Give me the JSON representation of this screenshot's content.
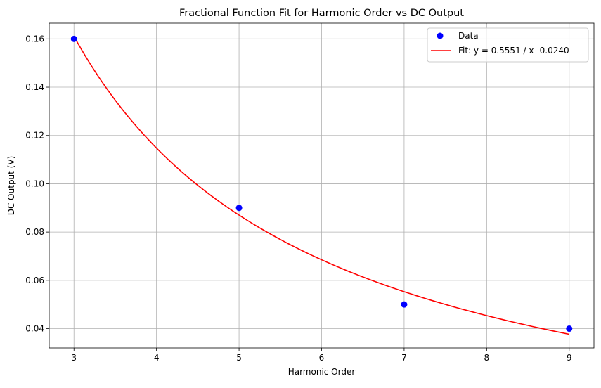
{
  "chart_data": {
    "type": "scatter",
    "title": "Fractional Function Fit for Harmonic Order vs DC Output",
    "xlabel": "Harmonic Order",
    "ylabel": "DC Output (V)",
    "xlim": [
      2.7,
      9.3
    ],
    "ylim": [
      0.032,
      0.1665
    ],
    "x_ticks": [
      3,
      4,
      5,
      6,
      7,
      8,
      9
    ],
    "y_ticks": [
      0.04,
      0.06,
      0.08,
      0.1,
      0.12,
      0.14,
      0.16
    ],
    "x_tick_labels": [
      "3",
      "4",
      "5",
      "6",
      "7",
      "8",
      "9"
    ],
    "y_tick_labels": [
      "0.04",
      "0.06",
      "0.08",
      "0.10",
      "0.12",
      "0.14",
      "0.16"
    ],
    "grid": true,
    "legend_position": "top-right",
    "series": [
      {
        "name": "Data",
        "kind": "scatter",
        "color": "#0000ff",
        "x": [
          3,
          5,
          7,
          9
        ],
        "y": [
          0.16,
          0.09,
          0.05,
          0.04
        ]
      },
      {
        "name": "Fit: y = 0.5551 / x -0.0240",
        "kind": "line",
        "color": "#ff0000",
        "a": 0.5551,
        "b": -0.024,
        "x_range": [
          3,
          9
        ]
      }
    ]
  }
}
